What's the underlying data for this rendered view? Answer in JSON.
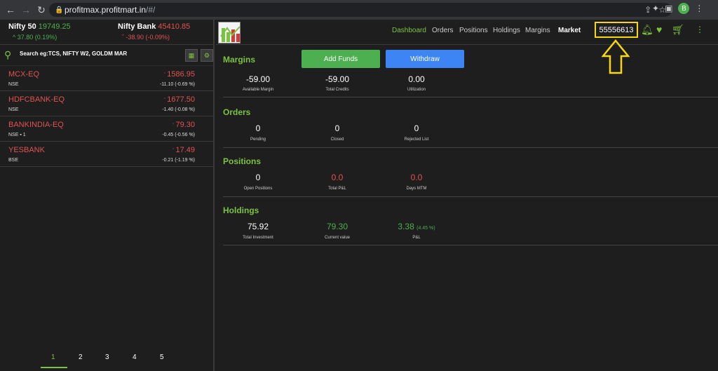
{
  "browser": {
    "url_host": "profitmax.profitmart.in",
    "url_path": "/#/",
    "profile_initial": "B"
  },
  "indices": [
    {
      "name": "Nifty 50",
      "value": "19749.25",
      "change": "37.80 (0.19%)",
      "direction": "up"
    },
    {
      "name": "Nifty Bank",
      "value": "45410.85",
      "change": "-38.90 (-0.09%)",
      "direction": "down"
    }
  ],
  "search": {
    "placeholder": "Search eg:TCS, NIFTY W2, GOLDM MAR"
  },
  "watchlist": [
    {
      "symbol": "MCX-EQ",
      "price": "1586.95",
      "exchange": "NSE",
      "change": "-11.10 (-0.69 %)"
    },
    {
      "symbol": "HDFCBANK-EQ",
      "price": "1677.50",
      "exchange": "NSE",
      "change": "-1.40 (-0.08 %)"
    },
    {
      "symbol": "BANKINDIA-EQ",
      "price": "79.30",
      "exchange": "NSE",
      "holding_count": "1",
      "change": "-0.45 (-0.56 %)"
    },
    {
      "symbol": "YESBANK",
      "price": "17.49",
      "exchange": "BSE",
      "change": "-0.21 (-1.19 %)"
    }
  ],
  "pagination": [
    "1",
    "2",
    "3",
    "4",
    "5"
  ],
  "nav": {
    "dashboard": "Dashboard",
    "orders": "Orders",
    "positions": "Positions",
    "holdings": "Holdings",
    "margins": "Margins",
    "market": "Market"
  },
  "account_id": "55556613",
  "margins": {
    "title": "Margins",
    "add_funds": "Add Funds",
    "withdraw": "Withdraw",
    "available_margin": {
      "value": "-59.00",
      "label": "Available Margin"
    },
    "total_credits": {
      "value": "-59.00",
      "label": "Total Credits"
    },
    "utilization": {
      "value": "0.00",
      "label": "Utilization"
    }
  },
  "orders": {
    "title": "Orders",
    "pending": {
      "value": "0",
      "label": "Pending"
    },
    "closed": {
      "value": "0",
      "label": "Closed"
    },
    "rejected": {
      "value": "0",
      "label": "Rejected List"
    }
  },
  "positions": {
    "title": "Positions",
    "open": {
      "value": "0",
      "label": "Open Positions"
    },
    "total_pnl": {
      "value": "0.0",
      "label": "Total P&L"
    },
    "days_mtm": {
      "value": "0.0",
      "label": "Days MTM"
    }
  },
  "holdings": {
    "title": "Holdings",
    "investment": {
      "value": "75.92",
      "label": "Total Investment"
    },
    "current": {
      "value": "79.30",
      "label": "Current value"
    },
    "pnl": {
      "value": "3.38",
      "percent": "(4.45 %)",
      "label": "P&L"
    }
  },
  "colors": {
    "accent": "#7cc241",
    "negative": "#e05252",
    "positive": "#4caf50",
    "highlight": "#f5d90a"
  }
}
